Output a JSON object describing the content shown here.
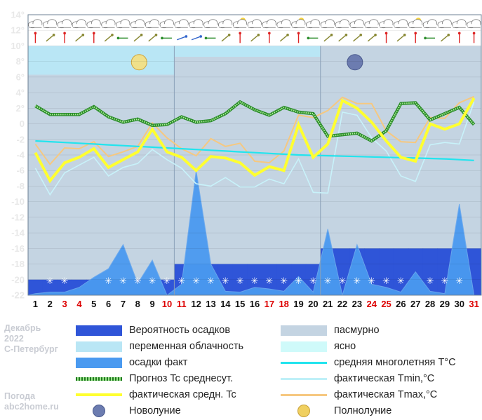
{
  "meta": {
    "month": "Декабрь",
    "year": "2022",
    "city": "С-Петербург",
    "site_title": "Погода",
    "site": "abc2home.ru"
  },
  "legend": [
    {
      "key": "precip_prob",
      "label": "Вероятность осадков",
      "color": "#2f55d8"
    },
    {
      "key": "overcast",
      "label": "пасмурно",
      "color": "#c4d4e2"
    },
    {
      "key": "partly",
      "label": "переменная облачность",
      "color": "#b9e6f5"
    },
    {
      "key": "clear",
      "label": "ясно",
      "color": "#cffafa"
    },
    {
      "key": "precip_fact",
      "label": "осадки факт",
      "color": "#4a9af0"
    },
    {
      "key": "norm",
      "label": "средняя многолетняя T°C",
      "color": "#22e4ee"
    },
    {
      "key": "forecast",
      "label": "Прогноз Tc среднесут.",
      "color": "#2a8c2a"
    },
    {
      "key": "tmin",
      "label": "фактическая Tmin,°C",
      "color": "#bff0f8"
    },
    {
      "key": "tavg",
      "label": "фактическая средн. Tc",
      "color": "#ffff30"
    },
    {
      "key": "tmax",
      "label": "фактическая Tmax,°C",
      "color": "#f6c880"
    },
    {
      "key": "new_moon",
      "label": "Новолуние",
      "color": "#6c7cb0"
    },
    {
      "key": "full_moon",
      "label": "Полнолуние",
      "color": "#f0d060"
    }
  ],
  "colors": {
    "plot_bg": "#c4d4e2",
    "partly": "#b9e6f5",
    "icon_row": "#eeeeee",
    "precip_prob": "#2f55d8",
    "precip_fact": "#4a9af0",
    "snow_band": "#c8cbf0",
    "forecast": "#2a8c2a",
    "tavg": "#ffff30",
    "tmin": "#c8f2fa",
    "tmax": "#f6c880",
    "norm": "#22e4ee",
    "weekend": "#dd0000",
    "axis_text": "#e8e8e8"
  },
  "chart_data": {
    "type": "line",
    "title": "",
    "xlabel": "",
    "ylabel": "",
    "ylim": [
      -22,
      14
    ],
    "y_ticks": [
      "14°",
      "12°",
      "10°",
      "8°",
      "6°",
      "4°",
      "2°",
      "0",
      "-2",
      "-4",
      "-6",
      "-8",
      "-10",
      "-12",
      "-14",
      "-16",
      "-18",
      "-20",
      "-22"
    ],
    "x": [
      1,
      2,
      3,
      4,
      5,
      6,
      7,
      8,
      9,
      10,
      11,
      12,
      13,
      14,
      15,
      16,
      17,
      18,
      19,
      20,
      21,
      22,
      23,
      24,
      25,
      26,
      27,
      28,
      29,
      30,
      31
    ],
    "x_labels": [
      "1",
      "2",
      "3",
      "4",
      "5",
      "6",
      "7",
      "8",
      "9",
      "10",
      "11",
      "12",
      "13",
      "14",
      "15",
      "16",
      "17",
      "18",
      "19",
      "20",
      "21",
      "22",
      "23",
      "24",
      "25",
      "26",
      "27",
      "28",
      "29",
      "30",
      "31"
    ],
    "weekend_days": [
      3,
      4,
      10,
      11,
      17,
      18,
      24,
      25,
      31
    ],
    "series": [
      {
        "name": "Прогноз Tc среднесут.",
        "key": "forecast",
        "values": [
          2.3,
          1.2,
          1.2,
          1.2,
          2.2,
          0.9,
          0.2,
          0.6,
          -0.2,
          -0.1,
          0.9,
          0.2,
          0.4,
          1.3,
          2.8,
          1.8,
          1.1,
          2.1,
          1.5,
          1.3,
          -1.6,
          -1.4,
          -1.2,
          -2.2,
          -0.9,
          2.6,
          2.7,
          0.5,
          1.3,
          2.1,
          -0.1
        ]
      },
      {
        "name": "фактическая средн. Tc",
        "key": "tavg",
        "values": [
          -3.7,
          -7.3,
          -5,
          -4.3,
          -3.2,
          -5.6,
          -4.6,
          -3.6,
          -0.7,
          -3.6,
          -4.3,
          -6,
          -4.2,
          -4.4,
          -5,
          -6.6,
          -5.5,
          -6,
          -0.1,
          -4.3,
          -2.6,
          3,
          2,
          0.2,
          -2.2,
          -4.3,
          -4.8,
          0,
          -0.7,
          0,
          3.3
        ]
      },
      {
        "name": "фактическая Tmin,°C",
        "key": "tmin",
        "values": [
          -5.7,
          -9.1,
          -6.3,
          -5.3,
          -4.3,
          -6.7,
          -5.6,
          -5.1,
          -3.3,
          -4.6,
          -5.7,
          -7.7,
          -8,
          -6.9,
          -8.1,
          -8.1,
          -7.1,
          -7.7,
          -4.5,
          -8.8,
          -8.9,
          1.5,
          1.1,
          -1.8,
          -3.5,
          -6.7,
          -7.4,
          -2.7,
          -2.4,
          -2.6,
          2.8
        ]
      },
      {
        "name": "фактическая Tmax,°C",
        "key": "tmax",
        "values": [
          -2.6,
          -5.2,
          -3.1,
          -3.2,
          -2.3,
          -4.2,
          -3.6,
          -2.9,
          0.1,
          -1.8,
          -3.2,
          -4.1,
          -1.9,
          -2.9,
          -2.5,
          -4.8,
          -5,
          -3.5,
          1.1,
          0.8,
          1.7,
          3.4,
          2.6,
          2.6,
          -0.9,
          -2.3,
          -2.4,
          0.8,
          0.7,
          2.7,
          3.5
        ]
      },
      {
        "name": "средняя многолетняя T°C",
        "key": "norm",
        "values": [
          -2.2,
          -2.3,
          -2.4,
          -2.5,
          -2.6,
          -2.7,
          -2.8,
          -2.9,
          -3,
          -3.1,
          -3.2,
          -3.3,
          -3.4,
          -3.5,
          -3.6,
          -3.7,
          -3.8,
          -3.9,
          -4,
          -4.05,
          -4.1,
          -4.15,
          -4.2,
          -4.25,
          -4.3,
          -4.35,
          -4.4,
          -4.45,
          -4.5,
          -4.6,
          -4.7
        ]
      }
    ],
    "precip_fact": [
      -21.8,
      -21.6,
      -21.6,
      -21,
      -19.7,
      -18.6,
      -15.5,
      -20.5,
      -17.5,
      -22,
      -20.6,
      -6,
      -18,
      -21.5,
      -21.6,
      -21,
      -21.2,
      -21.5,
      -19.6,
      -21.6,
      -13.5,
      -22,
      -15.5,
      -20.6,
      -21,
      -21.6,
      -19,
      -21.5,
      -21.8,
      -10.3,
      -22
    ],
    "precip_prob": [
      -20,
      -20,
      -20,
      -20,
      -20,
      -20,
      -20,
      -20,
      -20,
      -20,
      -18,
      -18,
      -18,
      -18,
      -18,
      -18,
      -18,
      -18,
      -18,
      -18,
      -16,
      -16,
      -16,
      -16,
      -16,
      -16,
      -16,
      -16,
      -16,
      -16,
      -16
    ],
    "snow_flakes": [
      2,
      3,
      6,
      7,
      8,
      9,
      10,
      11,
      12,
      13,
      14,
      15,
      16,
      17,
      18,
      19,
      20,
      21,
      22,
      23,
      24,
      25,
      26,
      28,
      29,
      30
    ],
    "sky": [
      {
        "from": 1,
        "to": 10,
        "type": "partly"
      },
      {
        "from": 11,
        "to": 20,
        "type": "partly_top"
      },
      {
        "from": 21,
        "to": 31,
        "type": "overcast"
      }
    ],
    "moon_phases": [
      {
        "day": 8,
        "type": "full_moon"
      },
      {
        "day": 23,
        "type": "new_moon"
      }
    ]
  }
}
